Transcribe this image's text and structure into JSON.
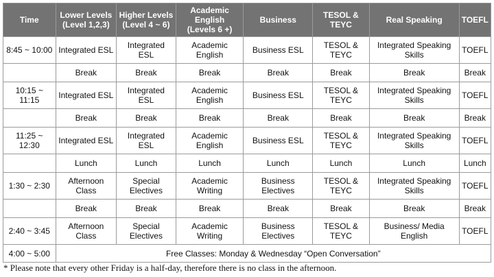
{
  "columns": [
    "Time",
    "Lower Levels\n(Level 1,2,3)",
    "Higher Levels\n(Level 4 ~ 6)",
    "Academic\nEnglish\n(Levels 6 +)",
    "Business",
    "TESOL &\nTEYC",
    "Real Speaking",
    "TOEFL"
  ],
  "rows": [
    [
      "8:45 ~ 10:00",
      "Integrated ESL",
      "Integrated ESL",
      "Academic English",
      "Business ESL",
      "TESOL &\nTEYC",
      "Integrated Speaking\nSkills",
      "TOEFL"
    ],
    [
      "",
      "Break",
      "Break",
      "Break",
      "Break",
      "Break",
      "Break",
      "Break"
    ],
    [
      "10:15 ~\n11:15",
      "Integrated ESL",
      "Integrated ESL",
      "Academic English",
      "Business ESL",
      "TESOL &\nTEYC",
      "Integrated Speaking\nSkills",
      "TOEFL"
    ],
    [
      "",
      "Break",
      "Break",
      "Break",
      "Break",
      "Break",
      "Break",
      "Break"
    ],
    [
      "11:25 ~\n12:30",
      "Integrated ESL",
      "Integrated ESL",
      "Academic English",
      "Business ESL",
      "TESOL &\nTEYC",
      "Integrated Speaking\nSkills",
      "TOEFL"
    ],
    [
      "",
      "Lunch",
      "Lunch",
      "Lunch",
      "Lunch",
      "Lunch",
      "Lunch",
      "Lunch"
    ],
    [
      "1:30 ~ 2:30",
      "Afternoon\nClass",
      "Special\nElectives",
      "Academic Writing",
      "Business\nElectives",
      "TESOL &\nTEYC",
      "Integrated Speaking\nSkills",
      "TOEFL"
    ],
    [
      "",
      "Break",
      "Break",
      "Break",
      "Break",
      "Break",
      "Break",
      "Break"
    ],
    [
      "2:40 ~ 3:45",
      "Afternoon\nClass",
      "Special\nElectives",
      "Academic Writing",
      "Business\nElectives",
      "TESOL &\nTEYC",
      "Business/ Media English",
      "TOEFL"
    ]
  ],
  "last_row": {
    "time": "4:00 ~ 5:00",
    "text": "Free Classes: Monday & Wednesday “Open Conversation”"
  },
  "note": "* Please note that every other Friday is a half-day, therefore there is no class in the afternoon."
}
